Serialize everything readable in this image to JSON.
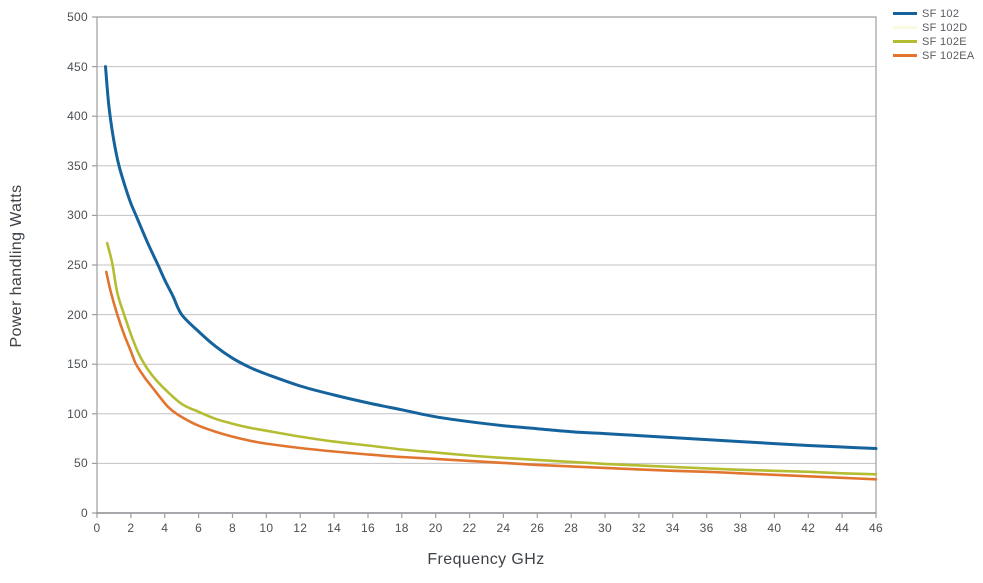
{
  "chart_data": {
    "type": "line",
    "title": "",
    "xlabel": "Frequency GHz",
    "ylabel": "Power handling Watts",
    "grid": "horizontal-only",
    "legend_position": "top-right-outside",
    "x_axis": {
      "min": 0,
      "max": 46,
      "tick_step": 2,
      "ticks": [
        0,
        2,
        4,
        6,
        8,
        10,
        12,
        14,
        16,
        18,
        20,
        22,
        24,
        26,
        28,
        30,
        32,
        34,
        36,
        38,
        40,
        42,
        44,
        46
      ]
    },
    "y_axis": {
      "min": 0,
      "max": 500,
      "tick_step": 50,
      "ticks": [
        0,
        50,
        100,
        150,
        200,
        250,
        300,
        350,
        400,
        450,
        500
      ]
    },
    "colors": {
      "gridline": "#c3c3c3",
      "plot_border": "#9e9e9e",
      "bottom_axis": "#888c90",
      "tick_mark": "#9e9e9e",
      "tick_text": "#4b5054",
      "axis_title_text": "#3d4248",
      "legend_text": "#585c61"
    },
    "series": [
      {
        "name": "SF 102",
        "color": "#15639c",
        "stroke_width": 3,
        "points": [
          [
            0.5,
            450
          ],
          [
            0.7,
            410
          ],
          [
            1.0,
            375
          ],
          [
            1.3,
            350
          ],
          [
            1.7,
            327
          ],
          [
            2.0,
            312
          ],
          [
            2.3,
            300
          ],
          [
            3.0,
            272
          ],
          [
            3.6,
            250
          ],
          [
            4.0,
            235
          ],
          [
            4.5,
            218
          ],
          [
            5.0,
            200
          ],
          [
            6.0,
            183
          ],
          [
            7.0,
            168
          ],
          [
            8.0,
            156
          ],
          [
            9.0,
            147
          ],
          [
            10,
            140
          ],
          [
            12,
            128
          ],
          [
            14,
            119
          ],
          [
            16,
            111
          ],
          [
            18,
            104
          ],
          [
            20,
            97
          ],
          [
            22,
            92
          ],
          [
            24,
            88
          ],
          [
            26,
            85
          ],
          [
            28,
            82
          ],
          [
            30,
            80
          ],
          [
            32,
            78
          ],
          [
            34,
            76
          ],
          [
            36,
            74
          ],
          [
            38,
            72
          ],
          [
            40,
            70
          ],
          [
            42,
            68
          ],
          [
            44,
            66.5
          ],
          [
            46,
            65
          ]
        ]
      },
      {
        "name": "SF 102D",
        "color": "#fafae3",
        "stroke_width": 2.6,
        "points": []
      },
      {
        "name": "SF 102E",
        "color": "#b4bd32",
        "stroke_width": 2.6,
        "points": [
          [
            0.6,
            272
          ],
          [
            0.9,
            252
          ],
          [
            1.2,
            222
          ],
          [
            1.6,
            200
          ],
          [
            2.0,
            180
          ],
          [
            2.4,
            163
          ],
          [
            2.8,
            150
          ],
          [
            3.2,
            140
          ],
          [
            3.6,
            132
          ],
          [
            4.0,
            125
          ],
          [
            5.0,
            110
          ],
          [
            6.0,
            102
          ],
          [
            7.0,
            95
          ],
          [
            8.0,
            90
          ],
          [
            9.0,
            86
          ],
          [
            10,
            83
          ],
          [
            12,
            77
          ],
          [
            14,
            72
          ],
          [
            16,
            68
          ],
          [
            18,
            64
          ],
          [
            20,
            61
          ],
          [
            22,
            58
          ],
          [
            24,
            55.5
          ],
          [
            26,
            53.5
          ],
          [
            28,
            51.5
          ],
          [
            30,
            49.5
          ],
          [
            32,
            48
          ],
          [
            34,
            46.5
          ],
          [
            36,
            45
          ],
          [
            38,
            43.5
          ],
          [
            40,
            42.5
          ],
          [
            42,
            41.5
          ],
          [
            44,
            40
          ],
          [
            46,
            39
          ]
        ]
      },
      {
        "name": "SF 102EA",
        "color": "#e1752f",
        "stroke_width": 2.6,
        "points": [
          [
            0.55,
            243
          ],
          [
            0.8,
            224
          ],
          [
            1.2,
            200
          ],
          [
            1.6,
            180
          ],
          [
            2.0,
            163
          ],
          [
            2.3,
            150
          ],
          [
            2.8,
            137
          ],
          [
            3.2,
            128
          ],
          [
            3.7,
            117
          ],
          [
            4.2,
            107
          ],
          [
            4.7,
            100
          ],
          [
            5.5,
            92
          ],
          [
            6.0,
            88
          ],
          [
            7.0,
            82
          ],
          [
            8.0,
            77
          ],
          [
            9.0,
            73
          ],
          [
            10,
            70
          ],
          [
            12,
            65.5
          ],
          [
            14,
            62
          ],
          [
            16,
            59
          ],
          [
            18,
            56.5
          ],
          [
            20,
            54.5
          ],
          [
            22,
            52.5
          ],
          [
            24,
            50.5
          ],
          [
            26,
            48.5
          ],
          [
            28,
            47
          ],
          [
            30,
            45.5
          ],
          [
            32,
            44
          ],
          [
            34,
            42.5
          ],
          [
            36,
            41.5
          ],
          [
            38,
            40
          ],
          [
            40,
            38.5
          ],
          [
            42,
            37
          ],
          [
            44,
            35.5
          ],
          [
            46,
            34
          ]
        ]
      }
    ]
  }
}
